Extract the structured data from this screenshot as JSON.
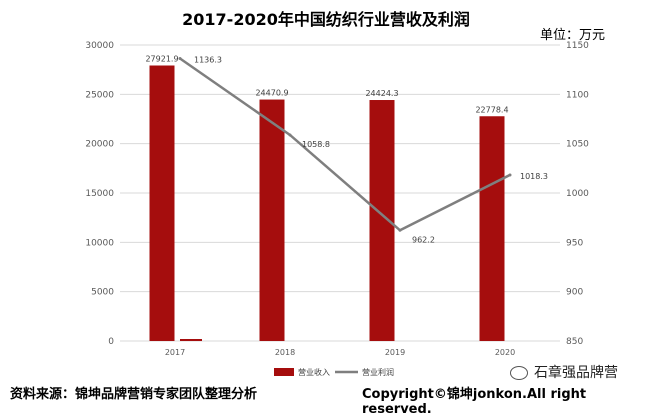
{
  "title": "2017-2020年中国纺织行业营收及利润",
  "unit_label": "单位：万元",
  "footer": {
    "source": "资料来源：锦坤品牌营销专家团队整理分析",
    "copyright": "Copyright©锦坤jonkon.All right reserved.",
    "watermark": "石章强品牌营"
  },
  "colors": {
    "bar": "#a50d0d",
    "line": "#7f7f7f",
    "grid": "#d9d9d9",
    "axis_text": "#595959"
  },
  "chart_data": {
    "type": "bar",
    "categories": [
      "2017",
      "2018",
      "2019",
      "2020"
    ],
    "series": [
      {
        "name": "营业收入",
        "type": "bar",
        "axis": "left",
        "values": [
          27921.9,
          24470.9,
          24424.3,
          22778.4
        ],
        "labels": [
          "27921.9",
          "24470.9",
          "24424.3",
          "22778.4"
        ]
      },
      {
        "name": "营业利润",
        "type": "line",
        "axis": "right",
        "values": [
          1136.3,
          1058.8,
          962.2,
          1018.3
        ],
        "labels": [
          "1136.3",
          "1058.8",
          "962.2",
          "1018.3"
        ]
      }
    ],
    "y_left": {
      "min": 0,
      "max": 30000,
      "step": 5000,
      "ticks": [
        "0",
        "5000",
        "10000",
        "15000",
        "20000",
        "25000",
        "30000"
      ]
    },
    "y_right": {
      "min": 850,
      "max": 1150,
      "step": 50,
      "ticks": [
        "850",
        "900",
        "950",
        "1000",
        "1050",
        "1100",
        "1150"
      ]
    },
    "grid": true,
    "legend_position": "bottom"
  }
}
